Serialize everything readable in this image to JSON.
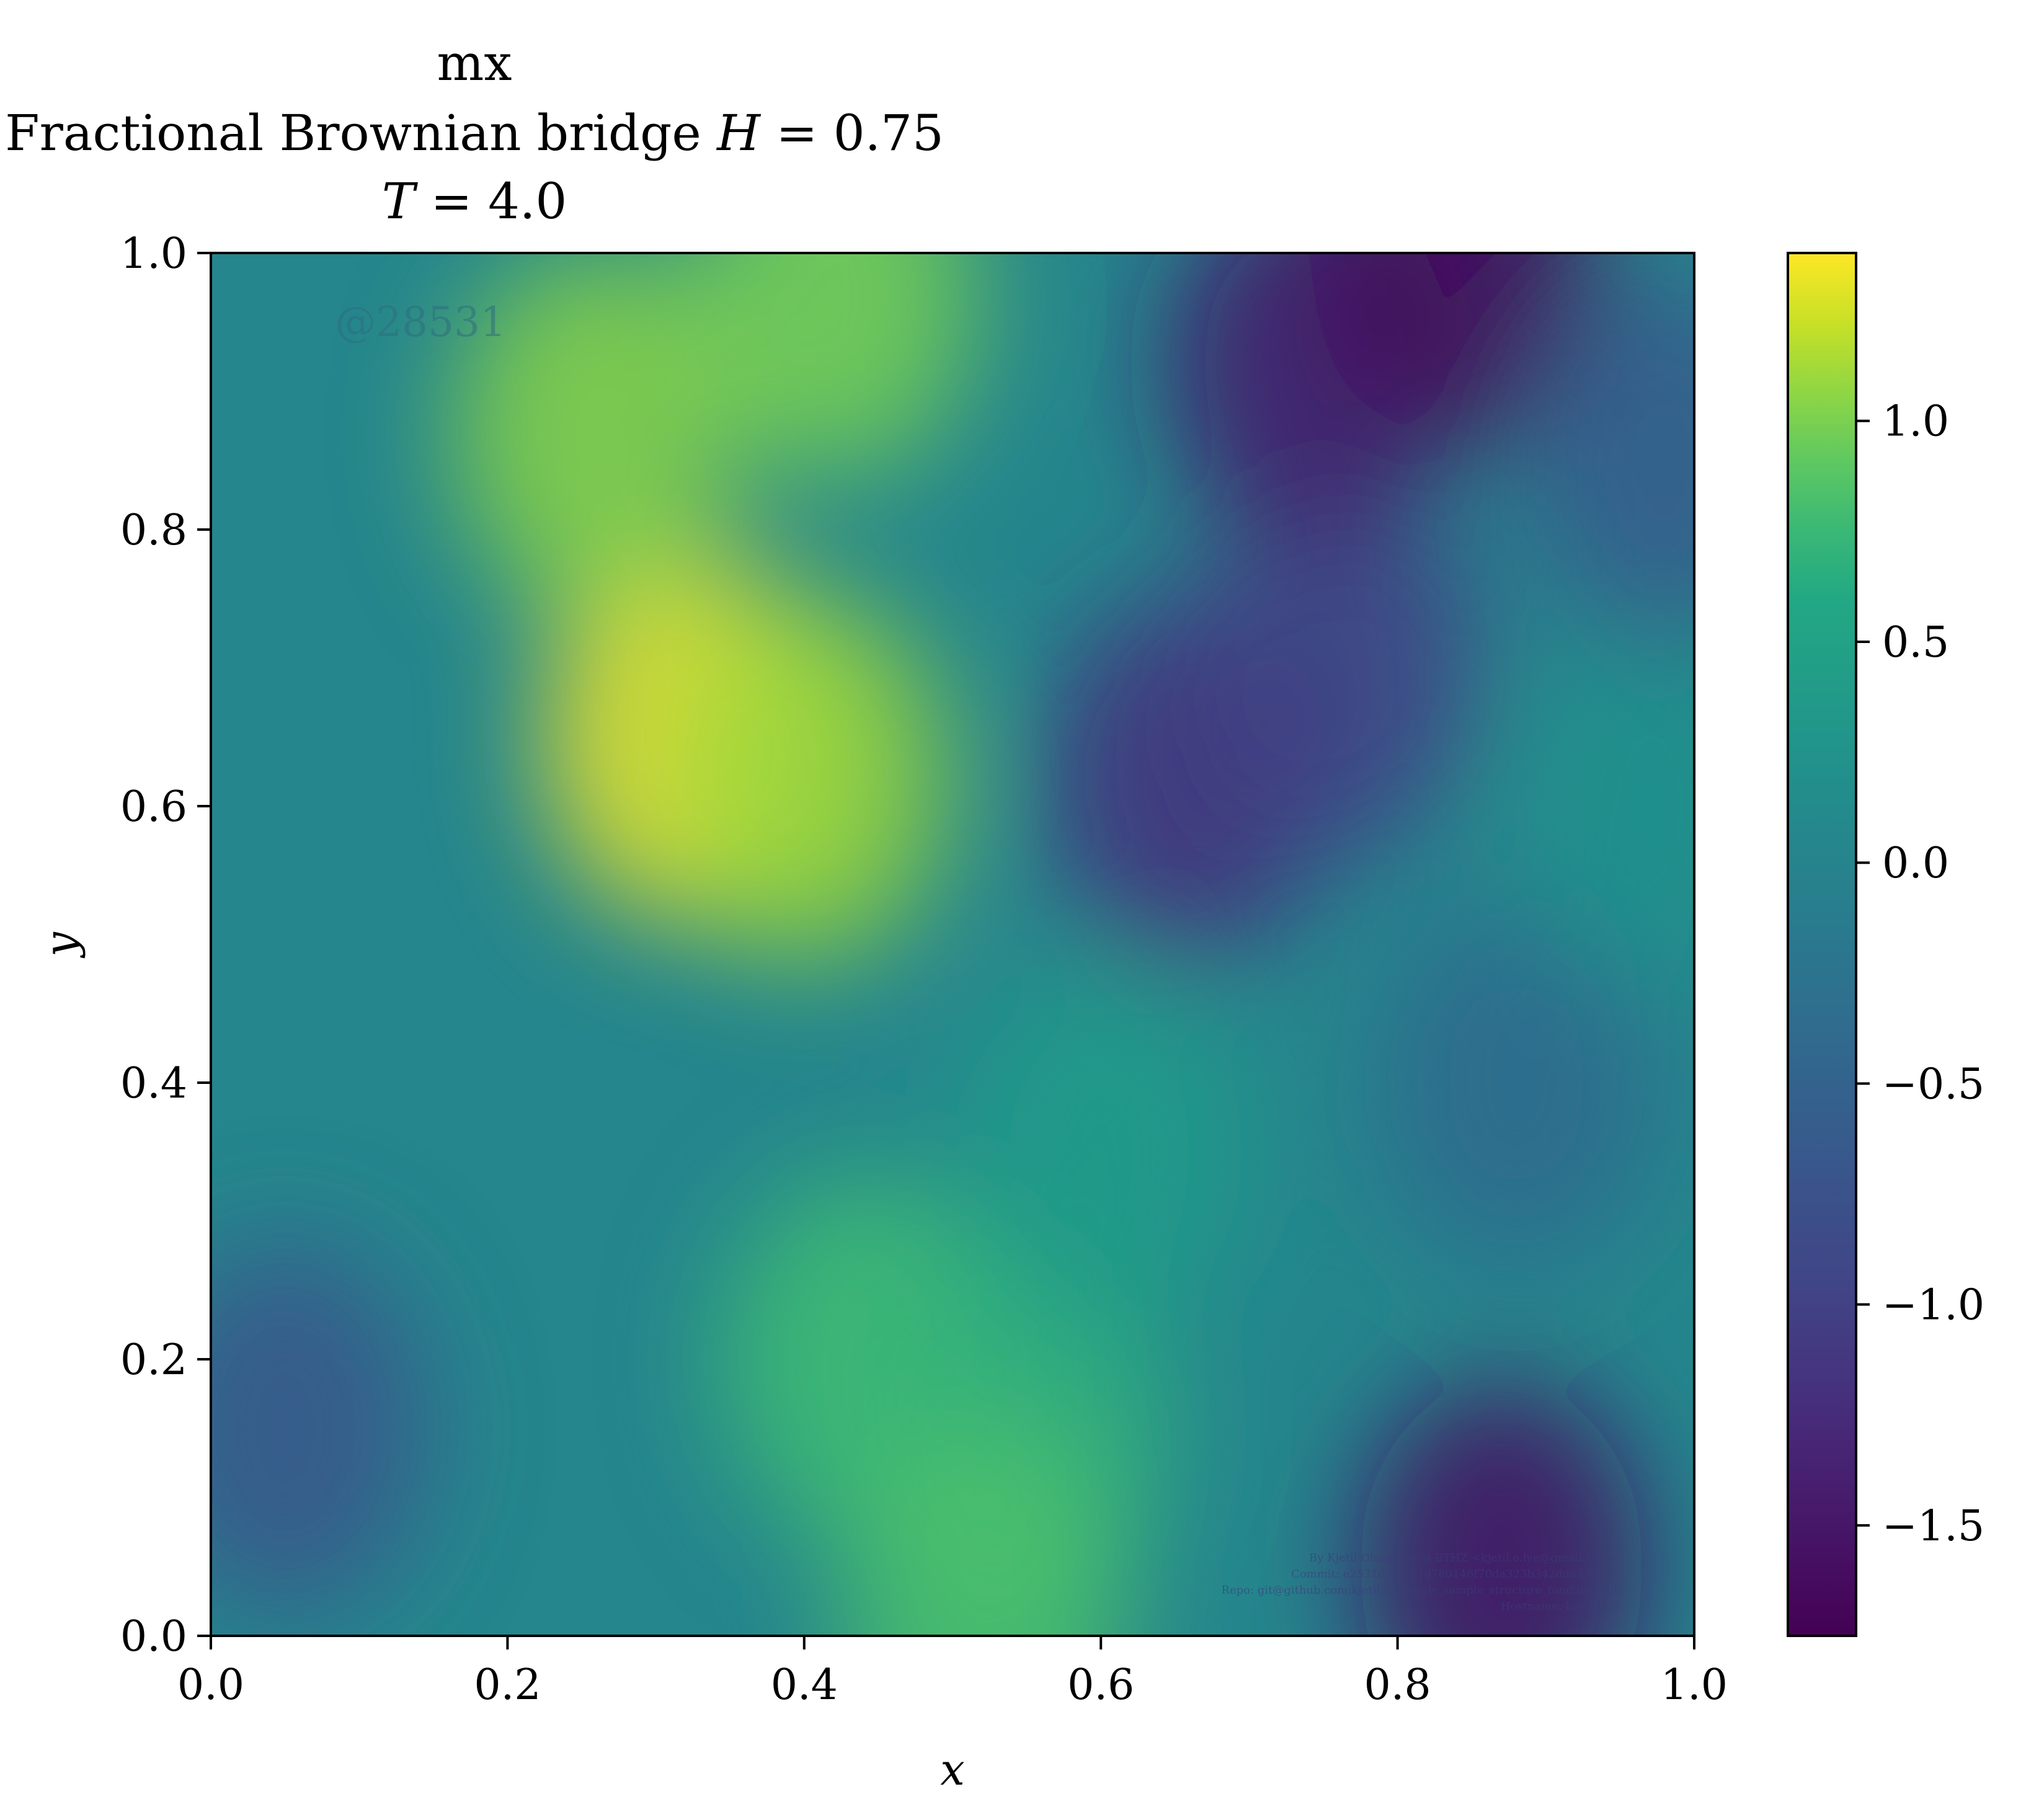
{
  "chart_data": {
    "type": "heatmap",
    "title": {
      "line1": "mx",
      "line2_prefix": "Fractional Brownian bridge ",
      "line2_var": "H",
      "line2_suffix": " = 0.75",
      "line3_var": "T",
      "line3_suffix": " = 4.0"
    },
    "xlabel": "x",
    "ylabel": "y",
    "xlim": [
      0.0,
      1.0
    ],
    "ylim": [
      0.0,
      1.0
    ],
    "xticks": [
      "0.0",
      "0.2",
      "0.4",
      "0.6",
      "0.8",
      "1.0"
    ],
    "yticks": [
      "0.0",
      "0.2",
      "0.4",
      "0.6",
      "0.8",
      "1.0"
    ],
    "colormap": "viridis",
    "colorbar": {
      "range": [
        -1.75,
        1.38
      ],
      "ticks": [
        1.0,
        0.5,
        0.0,
        -0.5,
        -1.0,
        -1.5
      ],
      "tick_labels": [
        "1.0",
        "0.5",
        "0.0",
        "−0.5",
        "−1.0",
        "−1.5"
      ]
    },
    "field_features": [
      {
        "x": 0.32,
        "y": 0.65,
        "value": 1.35
      },
      {
        "x": 0.26,
        "y": 0.87,
        "value": 1.05
      },
      {
        "x": 0.4,
        "y": 0.62,
        "value": 1.1
      },
      {
        "x": 0.44,
        "y": 0.2,
        "value": 0.8
      },
      {
        "x": 0.55,
        "y": 0.15,
        "value": 0.7
      },
      {
        "x": 0.42,
        "y": 0.97,
        "value": 1.0
      },
      {
        "x": 0.52,
        "y": 0.02,
        "value": 0.85
      },
      {
        "x": 0.6,
        "y": 0.35,
        "value": 0.4
      },
      {
        "x": 0.66,
        "y": 0.62,
        "value": -1.2
      },
      {
        "x": 0.76,
        "y": 0.7,
        "value": -1.0
      },
      {
        "x": 0.74,
        "y": 0.92,
        "value": -1.45
      },
      {
        "x": 0.84,
        "y": 0.99,
        "value": -1.7
      },
      {
        "x": 0.87,
        "y": 0.05,
        "value": -1.6
      },
      {
        "x": 0.05,
        "y": 0.15,
        "value": -0.7
      },
      {
        "x": 0.88,
        "y": 0.4,
        "value": -0.4
      },
      {
        "x": 0.97,
        "y": 0.6,
        "value": 0.2
      },
      {
        "x": 0.98,
        "y": 0.85,
        "value": -0.6
      }
    ],
    "annotations": {
      "sample_label": "@28531",
      "metadata_lines": [
        "By Kjetil Olsen Lye @ ETHZ <kjetil.o.lye@gmail.com>",
        "Commit: e2531d56c4f10780146f70da323b342dde53e295",
        "Repo: git@github.com:kjetil-lye/single_sample_structure_functions.git",
        "Hostname: lo-a2-058"
      ]
    }
  }
}
